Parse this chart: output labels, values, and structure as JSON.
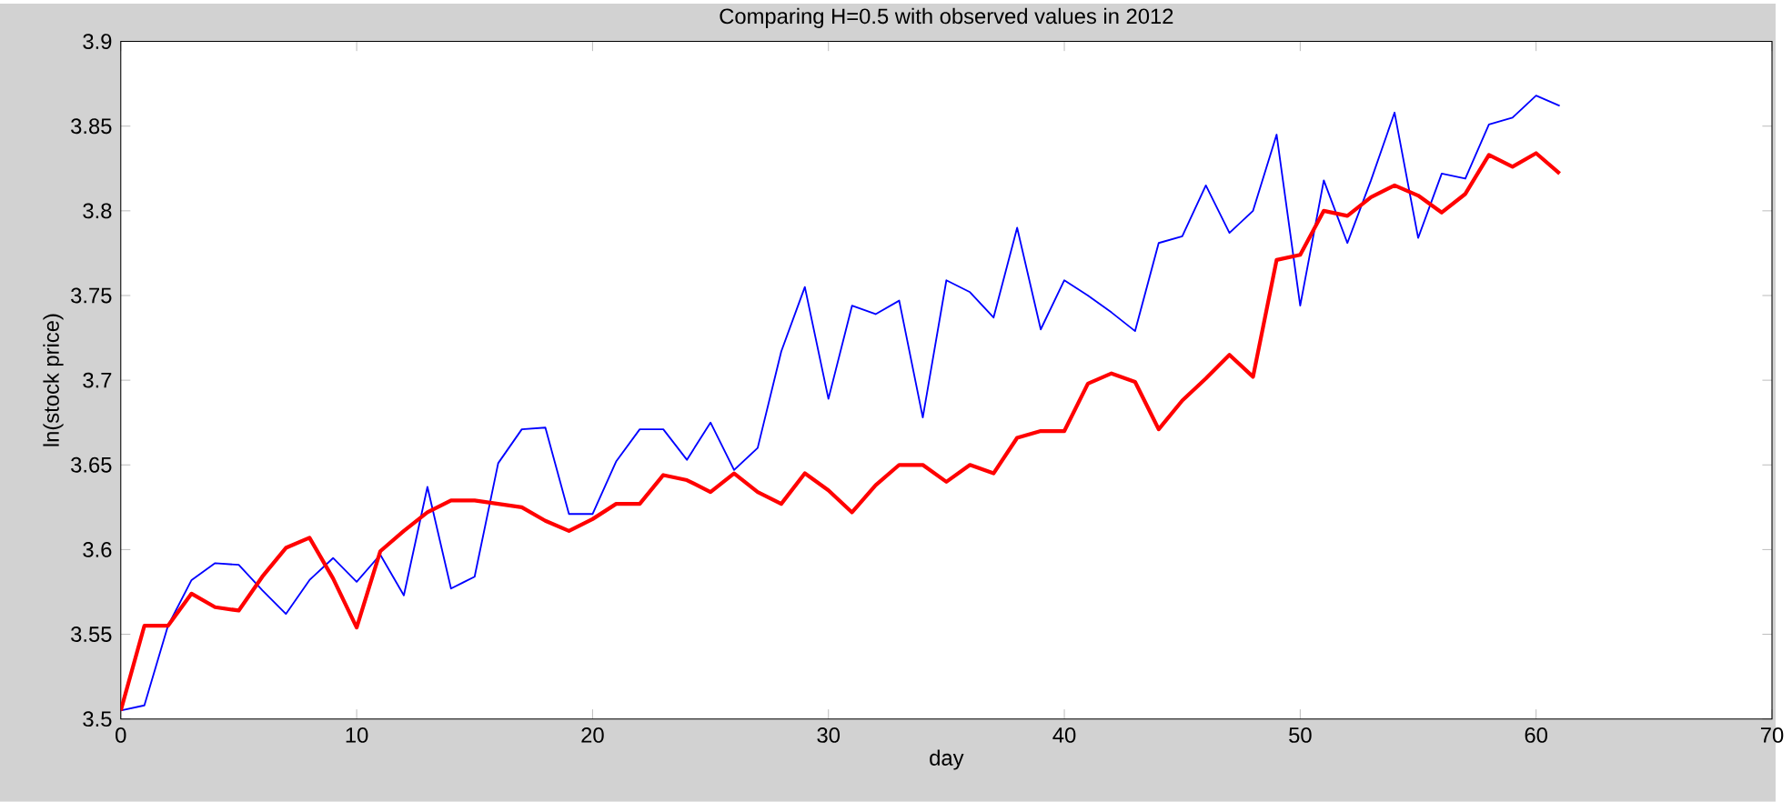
{
  "chart_data": {
    "type": "line",
    "title": "Comparing H=0.5 with observed values in 2012",
    "xlabel": "day",
    "ylabel": "ln(stock price)",
    "xlim": [
      0,
      70
    ],
    "xticks": [
      0,
      10,
      20,
      30,
      40,
      50,
      60,
      70
    ],
    "ylim": [
      3.5,
      3.9
    ],
    "yticks": [
      3.5,
      3.55,
      3.6,
      3.65,
      3.7,
      3.75,
      3.8,
      3.85,
      3.9
    ],
    "x": [
      0,
      1,
      2,
      3,
      4,
      5,
      6,
      7,
      8,
      9,
      10,
      11,
      12,
      13,
      14,
      15,
      16,
      17,
      18,
      19,
      20,
      21,
      22,
      23,
      24,
      25,
      26,
      27,
      28,
      29,
      30,
      31,
      32,
      33,
      34,
      35,
      36,
      37,
      38,
      39,
      40,
      41,
      42,
      43,
      44,
      45,
      46,
      47,
      48,
      49,
      50,
      51,
      52,
      53,
      54,
      55,
      56,
      57,
      58,
      59,
      60,
      61
    ],
    "grid": false,
    "marker": "none",
    "line_style": "solid",
    "series": [
      {
        "color": "#0000ff",
        "values": [
          3.505,
          3.508,
          3.555,
          3.582,
          3.592,
          3.591,
          3.576,
          3.562,
          3.582,
          3.595,
          3.581,
          3.597,
          3.573,
          3.637,
          3.577,
          3.584,
          3.651,
          3.671,
          3.672,
          3.621,
          3.621,
          3.652,
          3.671,
          3.671,
          3.653,
          3.675,
          3.647,
          3.66,
          3.717,
          3.755,
          3.689,
          3.744,
          3.739,
          3.747,
          3.678,
          3.759,
          3.752,
          3.737,
          3.79,
          3.73,
          3.759,
          3.75,
          3.74,
          3.729,
          3.781,
          3.785,
          3.815,
          3.787,
          3.8,
          3.845,
          3.744,
          3.818,
          3.781,
          3.818,
          3.858,
          3.784,
          3.822,
          3.819,
          3.851,
          3.855,
          3.868,
          3.862
        ]
      },
      {
        "color": "#ff0000",
        "values": [
          3.505,
          3.555,
          3.555,
          3.574,
          3.566,
          3.564,
          3.584,
          3.601,
          3.607,
          3.583,
          3.554,
          3.599,
          3.611,
          3.622,
          3.629,
          3.629,
          3.627,
          3.625,
          3.617,
          3.611,
          3.618,
          3.627,
          3.627,
          3.644,
          3.641,
          3.634,
          3.645,
          3.634,
          3.627,
          3.645,
          3.635,
          3.622,
          3.638,
          3.65,
          3.65,
          3.64,
          3.65,
          3.645,
          3.666,
          3.67,
          3.67,
          3.698,
          3.704,
          3.699,
          3.671,
          3.688,
          3.701,
          3.715,
          3.702,
          3.771,
          3.774,
          3.8,
          3.797,
          3.808,
          3.815,
          3.809,
          3.799,
          3.81,
          3.833,
          3.826,
          3.834,
          3.822
        ]
      }
    ]
  }
}
